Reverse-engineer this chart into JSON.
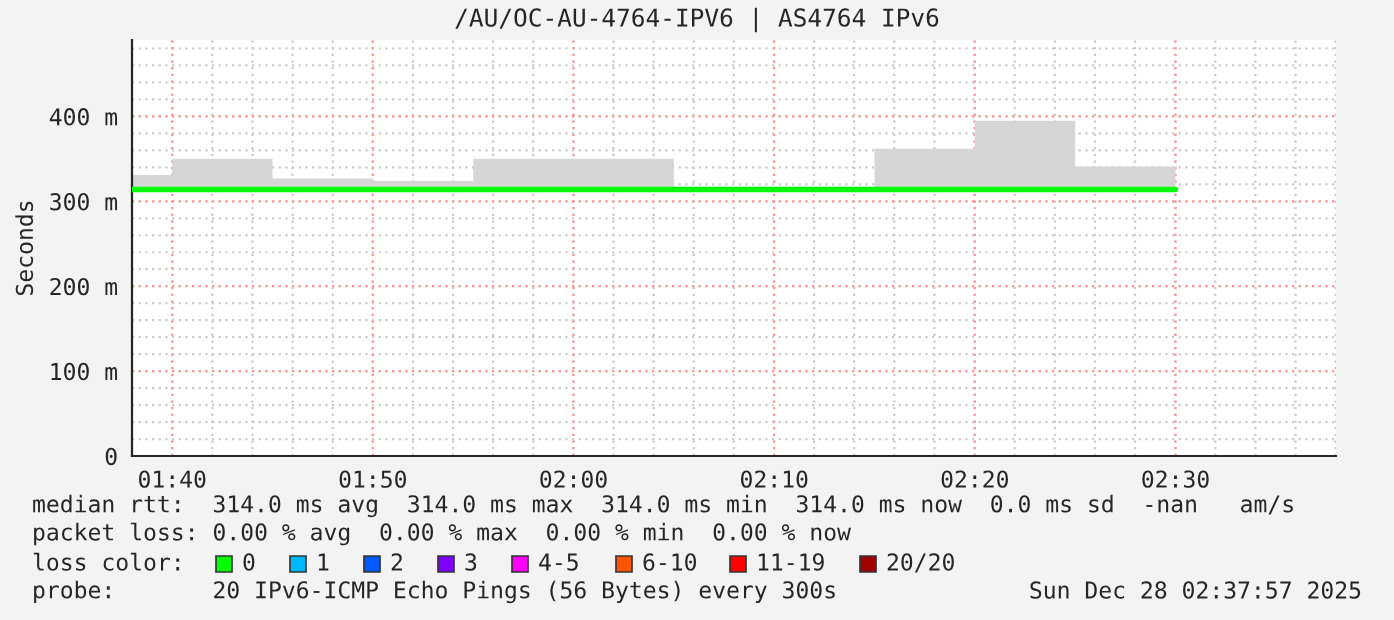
{
  "chart_data": {
    "type": "step",
    "title": "/AU/OC-AU-4764-IPV6 | AS4764 IPv6",
    "ylabel": "Seconds",
    "x": [
      1.6333,
      1.6667,
      1.75,
      1.8333,
      1.9167,
      2.0,
      2.0833,
      2.1667,
      2.25,
      2.3333,
      2.4167,
      2.5
    ],
    "series": [
      {
        "color": "#00ff00",
        "values": [
          314,
          314,
          314,
          314,
          314,
          314,
          314,
          314,
          314,
          314,
          314,
          314
        ],
        "lower": [
          314,
          314,
          314,
          314,
          314,
          314,
          314,
          314,
          314,
          314,
          314,
          314
        ],
        "upper": [
          331,
          350,
          327,
          324,
          350,
          350,
          316,
          316,
          362,
          395,
          341,
          341
        ]
      }
    ],
    "xlim": [
      1.6333,
      2.6333
    ],
    "xticks": [
      {
        "value": 1.6667,
        "label": "01:40"
      },
      {
        "value": 1.8333,
        "label": "01:50"
      },
      {
        "value": 2.0,
        "label": "02:00"
      },
      {
        "value": 2.1667,
        "label": "02:10"
      },
      {
        "value": 2.3333,
        "label": "02:20"
      },
      {
        "value": 2.5,
        "label": "02:30"
      }
    ],
    "ylim": [
      0,
      490
    ],
    "yticks": [
      0,
      {
        "value": 100,
        "label": "100 m"
      },
      {
        "value": 200,
        "label": "200 m"
      },
      {
        "value": 300,
        "label": "300 m"
      },
      {
        "value": 400,
        "label": "400 m"
      }
    ],
    "grid": true,
    "legend": false,
    "line_style": "solid",
    "marker": "none",
    "annotations": [
      "median rtt:  314.0 ms avg  314.0 ms max  314.0 ms min  314.0 ms now  0.0 ms sd  -nan   am/s",
      "packet loss: 0.00 % avg  0.00 % max  0.00 % min  0.00 % now",
      "loss color:",
      "0",
      "1",
      "2",
      "3",
      "4-5",
      "6-10",
      "11-19",
      "20/20",
      "probe:       20 IPv6-ICMP Echo Pings (56 Bytes) every 300s",
      "Sun Dec 28 02:37:57 2025"
    ]
  }
}
